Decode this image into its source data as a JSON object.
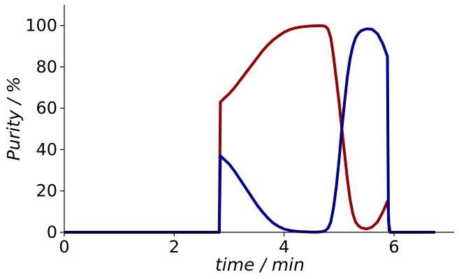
{
  "chart_data": {
    "type": "line",
    "title": "",
    "xlabel": "time / min",
    "ylabel": "Purity / %",
    "xlim": [
      0,
      7
    ],
    "ylim": [
      0,
      110
    ],
    "xticks": [
      0,
      2,
      4,
      6
    ],
    "yticks": [
      0,
      20,
      40,
      60,
      80,
      100
    ],
    "grid": false,
    "legend": "none",
    "series": [
      {
        "color": "#990000",
        "x": [
          0,
          2.82,
          2.84,
          2.9,
          3.0,
          3.1,
          3.2,
          3.3,
          3.4,
          3.5,
          3.6,
          3.7,
          3.8,
          3.9,
          4.0,
          4.1,
          4.2,
          4.3,
          4.4,
          4.5,
          4.6,
          4.7,
          4.75,
          4.8,
          4.85,
          4.9,
          4.95,
          5.0,
          5.05,
          5.1,
          5.15,
          5.2,
          5.25,
          5.3,
          5.35,
          5.4,
          5.5,
          5.6,
          5.7,
          5.8,
          5.88,
          5.9,
          5.91,
          5.93,
          6.0,
          6.5,
          6.75
        ],
        "y": [
          0,
          0,
          63,
          64.5,
          67,
          70,
          73.5,
          77,
          80.5,
          84,
          87.5,
          90.5,
          93,
          95,
          96.8,
          98,
          98.8,
          99.3,
          99.6,
          99.8,
          99.9,
          99.9,
          99.6,
          98.3,
          94,
          85,
          74,
          63,
          50,
          38,
          26,
          16,
          9,
          5,
          3.2,
          2.2,
          1.6,
          2.5,
          5,
          10,
          15,
          9,
          1,
          0,
          0,
          0,
          0
        ]
      },
      {
        "color": "#000099",
        "x": [
          0,
          2.82,
          2.84,
          2.9,
          3.0,
          3.1,
          3.2,
          3.3,
          3.4,
          3.5,
          3.6,
          3.7,
          3.8,
          3.9,
          4.0,
          4.1,
          4.2,
          4.3,
          4.4,
          4.5,
          4.6,
          4.7,
          4.75,
          4.8,
          4.85,
          4.9,
          4.95,
          5.0,
          5.05,
          5.1,
          5.15,
          5.2,
          5.25,
          5.3,
          5.35,
          5.4,
          5.5,
          5.6,
          5.7,
          5.8,
          5.88,
          5.89,
          5.9,
          5.93,
          6.0,
          6.5,
          6.75
        ],
        "y": [
          0,
          0,
          37,
          35.5,
          33,
          29.5,
          25.5,
          21.5,
          17.5,
          13.5,
          10,
          7,
          4.5,
          2.8,
          1.6,
          0.9,
          0.5,
          0.3,
          0.2,
          0.1,
          0.1,
          0.3,
          0.8,
          2,
          5,
          12,
          22,
          35,
          50,
          63,
          75,
          84,
          90,
          94,
          96.2,
          97.5,
          98.4,
          98.2,
          96,
          91,
          85,
          40,
          5,
          0,
          0,
          0,
          0
        ]
      }
    ]
  }
}
